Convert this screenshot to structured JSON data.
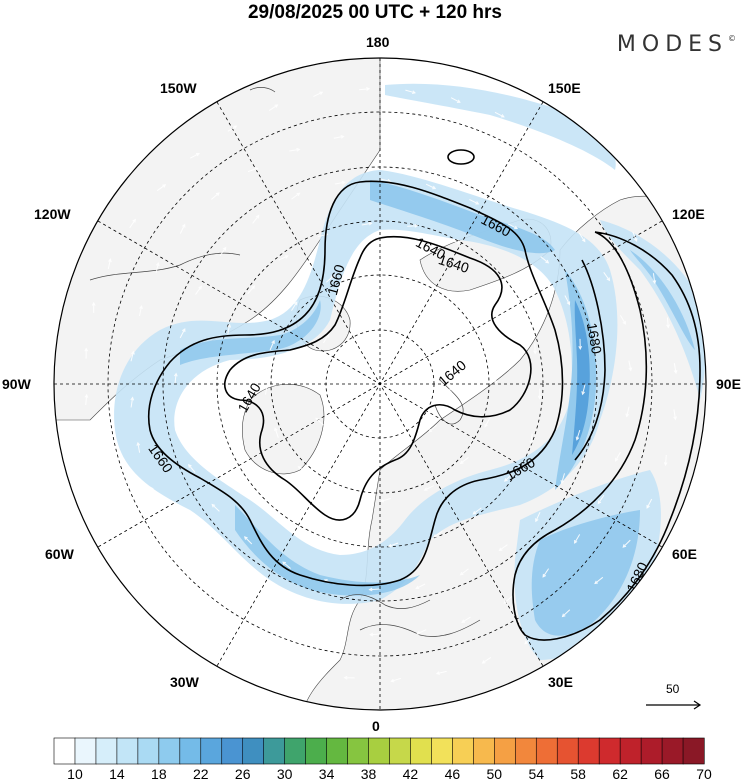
{
  "title": "29/08/2025  00 UTC  + 120 hrs",
  "brand": "MODES",
  "brand_mark": "©",
  "longitude_labels": {
    "lon_180": "180",
    "lon_150e": "150E",
    "lon_120e": "120E",
    "lon_90e": "90E",
    "lon_60e": "60E",
    "lon_30e": "30E",
    "lon_0": "0",
    "lon_30w": "30W",
    "lon_60w": "60W",
    "lon_90w": "90W",
    "lon_120w": "120W",
    "lon_150w": "150W"
  },
  "contour_labels": [
    "1640",
    "1660",
    "1640",
    "1660",
    "1680",
    "1640",
    "1660",
    "1640",
    "1660",
    "1680"
  ],
  "wind_reference": {
    "value": "50"
  },
  "colorbar": {
    "labels": [
      "10",
      "14",
      "18",
      "22",
      "26",
      "30",
      "34",
      "38",
      "42",
      "46",
      "50",
      "54",
      "58",
      "62",
      "66",
      "70"
    ],
    "colors": [
      "#ffffff",
      "#eaf6fd",
      "#d6eefa",
      "#c2e5f7",
      "#aadaf3",
      "#8ecbee",
      "#74bbe8",
      "#5aa6dd",
      "#4a94d2",
      "#3f8fc0",
      "#3d9a9a",
      "#3fa46c",
      "#4cae4c",
      "#64b840",
      "#86c540",
      "#a8cf40",
      "#c6d84a",
      "#e1e04e",
      "#f2e15a",
      "#f7cf55",
      "#f7b94d",
      "#f5a044",
      "#f2873c",
      "#ee6e36",
      "#e65331",
      "#dc3a2f",
      "#cf2a2d",
      "#bf222b",
      "#ad1c2a",
      "#9a1928",
      "#8a1826"
    ]
  },
  "colors": {
    "land": "#f3f3f3",
    "jet_light": "#c5e3f6",
    "jet_mid": "#8ec7ec",
    "jet_core": "#4e9bd8"
  }
}
